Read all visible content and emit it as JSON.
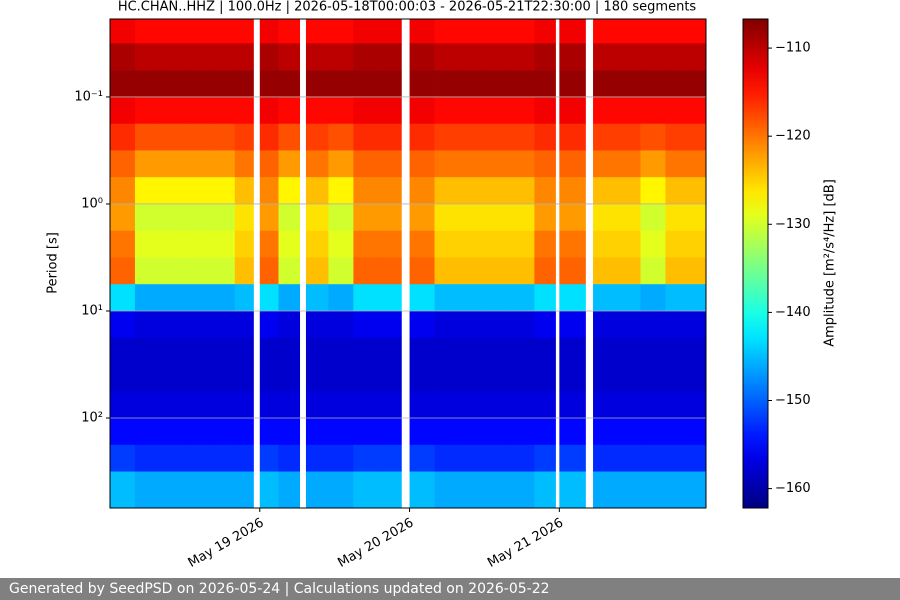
{
  "chart_data": {
    "type": "heatmap",
    "title": "HC.CHAN..HHZ | 100.0Hz | 2026-05-18T00:00:03 - 2026-05-21T22:30:00 | 180 segments",
    "ylabel": "Period [s]",
    "colorbar_label": "Amplitude [m²/s⁴/Hz] [dB]",
    "colormap": "jet",
    "log_y": true,
    "y_inverted": true,
    "grid": true,
    "xlim": [
      "2026-05-18T00:00:03",
      "2026-05-21T23:30:00"
    ],
    "xticks": [
      {
        "value": "2026-05-19T00:00:00",
        "label": "May 19 2026"
      },
      {
        "value": "2026-05-20T00:00:00",
        "label": "May 20 2026"
      },
      {
        "value": "2026-05-21T00:00:00",
        "label": "May 21 2026"
      }
    ],
    "ylim": [
      0.0187,
      693
    ],
    "yticks": [
      {
        "value": 0.1,
        "label": "10⁻¹"
      },
      {
        "value": 1,
        "label": "10⁰"
      },
      {
        "value": 10,
        "label": "10¹"
      },
      {
        "value": 100,
        "label": "10²"
      }
    ],
    "zlim": [
      -162.2,
      -106.7
    ],
    "zticks": [
      {
        "value": -160,
        "label": "−160"
      },
      {
        "value": -150,
        "label": "−150"
      },
      {
        "value": -140,
        "label": "−140"
      },
      {
        "value": -130,
        "label": "−130"
      },
      {
        "value": -120,
        "label": "−120"
      },
      {
        "value": -110,
        "label": "−110"
      }
    ],
    "x_edges": [
      "2026-05-18T00:00:03",
      "2026-05-18T04:00:00",
      "2026-05-18T08:00:00",
      "2026-05-18T12:00:00",
      "2026-05-18T16:00:00",
      "2026-05-18T20:00:00",
      "2026-05-18T23:00:00",
      "2026-05-19T00:00:00",
      "2026-05-19T03:00:00",
      "2026-05-19T06:24:00",
      "2026-05-19T07:24:00",
      "2026-05-19T11:00:00",
      "2026-05-19T15:00:00",
      "2026-05-19T19:00:00",
      "2026-05-19T22:42:00",
      "2026-05-20T00:00:00",
      "2026-05-20T04:00:00",
      "2026-05-20T08:00:00",
      "2026-05-20T12:00:00",
      "2026-05-20T16:00:00",
      "2026-05-20T20:00:00",
      "2026-05-20T23:24:00",
      "2026-05-21T00:00:00",
      "2026-05-21T04:12:00",
      "2026-05-21T05:24:00",
      "2026-05-21T09:00:00",
      "2026-05-21T13:00:00",
      "2026-05-21T17:00:00",
      "2026-05-21T21:00:00",
      "2026-05-21T23:30:00"
    ],
    "y_edges": [
      0.0187,
      0.0316,
      0.0562,
      0.1,
      0.178,
      0.316,
      0.562,
      1,
      1.78,
      3.16,
      5.62,
      10,
      17.8,
      31.6,
      56.2,
      100,
      178,
      316,
      693
    ],
    "z": [
      [
        -113,
        -109,
        -108,
        -113,
        -116,
        -119,
        -121,
        -122,
        -120,
        -119,
        -143,
        -156,
        -158,
        -158,
        -157,
        -155,
        -152,
        -145
      ],
      [
        -114,
        -110,
        -108,
        -114,
        -118,
        -122,
        -127,
        -130,
        -129,
        -130,
        -146,
        -157,
        -158,
        -158,
        -157,
        -155,
        -153,
        -146
      ],
      [
        -114,
        -110,
        -108,
        -114,
        -118,
        -122,
        -127,
        -130,
        -129,
        -130,
        -146,
        -157,
        -158,
        -158,
        -157,
        -155,
        -153,
        -146
      ],
      [
        -114,
        -110,
        -108,
        -114,
        -118,
        -122,
        -127,
        -130,
        -129,
        -130,
        -146,
        -157,
        -158,
        -158,
        -157,
        -155,
        -153,
        -146
      ],
      [
        -114,
        -110,
        -108,
        -114,
        -118,
        -122,
        -127,
        -130,
        -129,
        -130,
        -146,
        -157,
        -158,
        -158,
        -157,
        -155,
        -153,
        -146
      ],
      [
        -114,
        -110,
        -108,
        -114,
        -117,
        -120,
        -124,
        -126,
        -125,
        -124,
        -145,
        -157,
        -158,
        -158,
        -157,
        -155,
        -153,
        -146
      ],
      [
        null,
        null,
        null,
        null,
        null,
        null,
        null,
        null,
        null,
        null,
        null,
        null,
        null,
        null,
        null,
        null,
        null,
        null
      ],
      [
        -113,
        -109,
        -108,
        -113,
        -116,
        -119,
        -121,
        -122,
        -120,
        -119,
        -143,
        -156,
        -158,
        -158,
        -157,
        -155,
        -152,
        -145
      ],
      [
        -114,
        -110,
        -108,
        -114,
        -118,
        -122,
        -127,
        -130,
        -129,
        -130,
        -146,
        -157,
        -158,
        -158,
        -157,
        -155,
        -153,
        -146
      ],
      [
        null,
        null,
        null,
        null,
        null,
        null,
        null,
        null,
        null,
        null,
        null,
        null,
        null,
        null,
        null,
        null,
        null,
        null
      ],
      [
        -114,
        -110,
        -108,
        -114,
        -117,
        -120,
        -124,
        -126,
        -125,
        -124,
        -145,
        -157,
        -158,
        -158,
        -157,
        -155,
        -153,
        -146
      ],
      [
        -114,
        -110,
        -108,
        -114,
        -118,
        -122,
        -127,
        -130,
        -129,
        -130,
        -146,
        -157,
        -158,
        -158,
        -157,
        -155,
        -153,
        -146
      ],
      [
        -113,
        -109,
        -108,
        -113,
        -116,
        -119,
        -121,
        -122,
        -120,
        -119,
        -143,
        -156,
        -158,
        -158,
        -157,
        -155,
        -152,
        -145
      ],
      [
        -113,
        -109,
        -108,
        -113,
        -116,
        -119,
        -121,
        -122,
        -120,
        -119,
        -143,
        -156,
        -158,
        -158,
        -157,
        -155,
        -152,
        -145
      ],
      [
        null,
        null,
        null,
        null,
        null,
        null,
        null,
        null,
        null,
        null,
        null,
        null,
        null,
        null,
        null,
        null,
        null,
        null
      ],
      [
        -113,
        -109,
        -108,
        -113,
        -116,
        -119,
        -121,
        -122,
        -120,
        -119,
        -143,
        -156,
        -158,
        -158,
        -157,
        -155,
        -152,
        -145
      ],
      [
        -114,
        -110,
        -108,
        -114,
        -117,
        -120,
        -124,
        -126,
        -125,
        -124,
        -145,
        -157,
        -158,
        -158,
        -157,
        -155,
        -153,
        -146
      ],
      [
        -114,
        -110,
        -108,
        -114,
        -117,
        -120,
        -124,
        -126,
        -125,
        -124,
        -145,
        -157,
        -158,
        -158,
        -157,
        -155,
        -153,
        -146
      ],
      [
        -114,
        -110,
        -108,
        -114,
        -117,
        -120,
        -124,
        -126,
        -125,
        -124,
        -145,
        -157,
        -158,
        -158,
        -157,
        -155,
        -153,
        -146
      ],
      [
        -114,
        -110,
        -108,
        -114,
        -117,
        -120,
        -124,
        -126,
        -125,
        -124,
        -145,
        -157,
        -158,
        -158,
        -157,
        -155,
        -153,
        -146
      ],
      [
        -113,
        -109,
        -108,
        -113,
        -116,
        -119,
        -121,
        -122,
        -120,
        -119,
        -143,
        -156,
        -158,
        -158,
        -157,
        -155,
        -152,
        -145
      ],
      [
        null,
        null,
        null,
        null,
        null,
        null,
        null,
        null,
        null,
        null,
        null,
        null,
        null,
        null,
        null,
        null,
        null,
        null
      ],
      [
        -113,
        -109,
        -108,
        -113,
        -116,
        -119,
        -121,
        -122,
        -120,
        -119,
        -143,
        -156,
        -158,
        -158,
        -157,
        -155,
        -152,
        -145
      ],
      [
        null,
        null,
        null,
        null,
        null,
        null,
        null,
        null,
        null,
        null,
        null,
        null,
        null,
        null,
        null,
        null,
        null,
        null
      ],
      [
        -114,
        -110,
        -108,
        -114,
        -117,
        -120,
        -124,
        -126,
        -125,
        -124,
        -145,
        -157,
        -158,
        -158,
        -157,
        -155,
        -153,
        -146
      ],
      [
        -114,
        -110,
        -108,
        -114,
        -117,
        -120,
        -124,
        -126,
        -125,
        -124,
        -145,
        -157,
        -158,
        -158,
        -157,
        -155,
        -153,
        -146
      ],
      [
        -114,
        -110,
        -108,
        -114,
        -118,
        -122,
        -127,
        -130,
        -129,
        -130,
        -146,
        -157,
        -158,
        -158,
        -157,
        -155,
        -153,
        -146
      ],
      [
        -114,
        -110,
        -108,
        -114,
        -117,
        -120,
        -124,
        -126,
        -125,
        -124,
        -145,
        -157,
        -158,
        -158,
        -157,
        -155,
        -153,
        -146
      ],
      [
        -114,
        -110,
        -108,
        -114,
        -117,
        -120,
        -124,
        -126,
        -125,
        -124,
        -145,
        -157,
        -158,
        -158,
        -157,
        -155,
        -153,
        -146
      ]
    ]
  },
  "footer": {
    "text": "Generated by SeedPSD on 2026-05-24 | Calculations updated on 2026-05-22"
  }
}
